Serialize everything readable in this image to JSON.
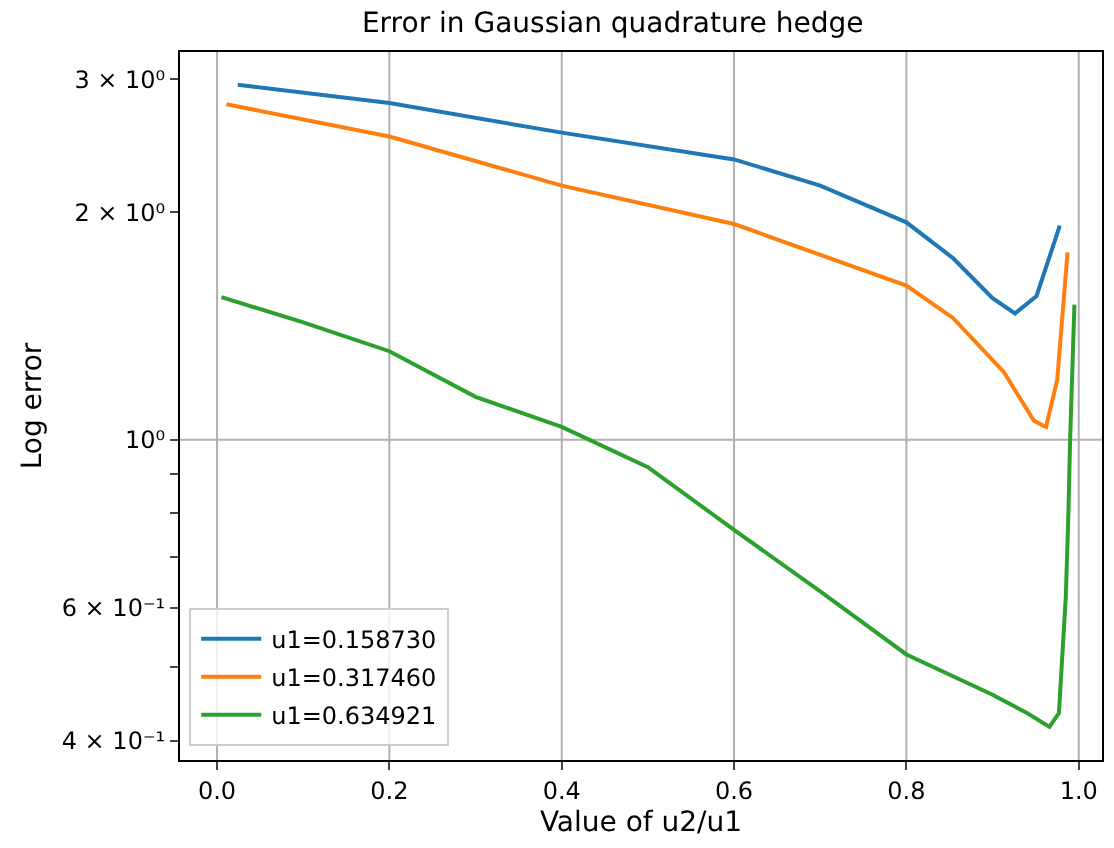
{
  "chart_data": {
    "type": "line",
    "title": "Error in Gaussian quadrature hedge",
    "xlabel": "Value of u2/u1",
    "ylabel": "Log error",
    "log": "y",
    "grid": true,
    "legend": "bottom left",
    "line_style": "solid",
    "marker": "none",
    "xlim": [
      -0.043,
      1.027
    ],
    "ylim": [
      0.377,
      3.26
    ],
    "xticks": [
      {
        "value": 0,
        "label": "0.0"
      },
      0.2,
      0.4,
      0.6,
      0.8,
      {
        "value": 1,
        "label": "1.0"
      }
    ],
    "yticks": [
      {
        "value": 0.4,
        "label": "4 × 10⁻¹"
      },
      {
        "value": 0.5,
        "label": null
      },
      {
        "value": 0.6,
        "label": "6 × 10⁻¹"
      },
      {
        "value": 0.7,
        "label": null
      },
      {
        "value": 0.8,
        "label": null
      },
      {
        "value": 0.9,
        "label": null
      },
      {
        "value": 1,
        "label": "10⁰"
      },
      {
        "value": 2,
        "label": "2 × 10⁰"
      },
      {
        "value": 3,
        "label": "3 × 10⁰"
      }
    ],
    "series": [
      {
        "name": "u1=0.158730",
        "color": "#1f77b4",
        "x": [
          0.024,
          0.2,
          0.4,
          0.6,
          0.7,
          0.8,
          0.854,
          0.9,
          0.926,
          0.951,
          0.978
        ],
        "values": [
          2.95,
          2.79,
          2.55,
          2.35,
          2.17,
          1.94,
          1.74,
          1.54,
          1.47,
          1.55,
          1.92
        ]
      },
      {
        "name": "u1=0.317460",
        "color": "#ff7f0e",
        "x": [
          0.011,
          0.2,
          0.4,
          0.6,
          0.8,
          0.854,
          0.913,
          0.948,
          0.962,
          0.975,
          0.987
        ],
        "values": [
          2.78,
          2.52,
          2.17,
          1.93,
          1.6,
          1.45,
          1.23,
          1.06,
          1.04,
          1.2,
          1.77
        ]
      },
      {
        "name": "u1=0.634921",
        "color": "#2ca02c",
        "x": [
          0.005,
          0.1,
          0.2,
          0.3,
          0.4,
          0.5,
          0.6,
          0.7,
          0.8,
          0.9,
          0.94,
          0.966,
          0.977,
          0.985,
          0.988,
          0.99,
          0.995
        ],
        "values": [
          1.545,
          1.43,
          1.31,
          1.14,
          1.04,
          0.92,
          0.76,
          0.63,
          0.52,
          0.46,
          0.435,
          0.417,
          0.435,
          0.62,
          0.8,
          1.0,
          1.51
        ]
      }
    ]
  }
}
